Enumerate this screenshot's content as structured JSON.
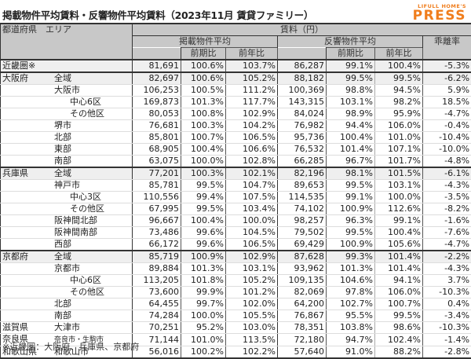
{
  "title": "掲載物件平均賃料・反響物件平均賃料（2023年11月 賃貸ファミリー）",
  "logo": {
    "line1": "LIFULL HOME'S",
    "line2": "PRESS",
    "color": "#f07d1c"
  },
  "header": {
    "area": "都道府県　エリア",
    "rent": "賃料（円）",
    "listed": "掲載物件平均",
    "response": "反響物件平均",
    "divergence": "乖離率",
    "qoq": "前期比",
    "yoy": "前年比"
  },
  "rows": [
    {
      "pref": "近畿圏※",
      "area": "",
      "l": "81,691",
      "lq": "100.6%",
      "ly": "103.7%",
      "r": "86,287",
      "rq": "99.1%",
      "ry": "100.4%",
      "d": "-5.3%"
    },
    {
      "pref": "大阪府",
      "area": "全域",
      "l": "82,697",
      "lq": "100.6%",
      "ly": "105.2%",
      "r": "88,182",
      "rq": "99.5%",
      "ry": "99.5%",
      "d": "-6.2%"
    },
    {
      "pref": "",
      "area": "大阪市",
      "l": "106,253",
      "lq": "100.5%",
      "ly": "111.2%",
      "r": "100,369",
      "rq": "98.8%",
      "ry": "94.5%",
      "d": "5.9%"
    },
    {
      "pref": "",
      "area": "中心6区",
      "l": "169,873",
      "lq": "101.3%",
      "ly": "117.7%",
      "r": "143,315",
      "rq": "103.1%",
      "ry": "98.2%",
      "d": "18.5%"
    },
    {
      "pref": "",
      "area": "その他区",
      "l": "80,053",
      "lq": "100.8%",
      "ly": "102.9%",
      "r": "84,024",
      "rq": "98.9%",
      "ry": "95.9%",
      "d": "-4.7%"
    },
    {
      "pref": "",
      "area": "堺市",
      "l": "76,681",
      "lq": "100.3%",
      "ly": "104.2%",
      "r": "76,982",
      "rq": "94.4%",
      "ry": "106.0%",
      "d": "-0.4%"
    },
    {
      "pref": "",
      "area": "北部",
      "l": "85,801",
      "lq": "100.7%",
      "ly": "106.5%",
      "r": "95,736",
      "rq": "100.4%",
      "ry": "101.0%",
      "d": "-10.4%"
    },
    {
      "pref": "",
      "area": "東部",
      "l": "68,905",
      "lq": "100.4%",
      "ly": "106.6%",
      "r": "76,532",
      "rq": "101.4%",
      "ry": "107.1%",
      "d": "-10.0%"
    },
    {
      "pref": "",
      "area": "南部",
      "l": "63,075",
      "lq": "100.0%",
      "ly": "102.8%",
      "r": "66,285",
      "rq": "96.7%",
      "ry": "101.7%",
      "d": "-4.8%"
    },
    {
      "pref": "兵庫県",
      "area": "全域",
      "l": "77,201",
      "lq": "100.3%",
      "ly": "102.1%",
      "r": "82,196",
      "rq": "98.1%",
      "ry": "101.5%",
      "d": "-6.1%"
    },
    {
      "pref": "",
      "area": "神戸市",
      "l": "85,781",
      "lq": "99.5%",
      "ly": "104.7%",
      "r": "89,653",
      "rq": "99.5%",
      "ry": "103.1%",
      "d": "-4.3%"
    },
    {
      "pref": "",
      "area": "中心3区",
      "l": "110,556",
      "lq": "99.4%",
      "ly": "107.5%",
      "r": "114,535",
      "rq": "99.1%",
      "ry": "100.0%",
      "d": "-3.5%"
    },
    {
      "pref": "",
      "area": "その他区",
      "l": "67,995",
      "lq": "99.5%",
      "ly": "103.4%",
      "r": "74,102",
      "rq": "100.9%",
      "ry": "112.6%",
      "d": "-8.2%"
    },
    {
      "pref": "",
      "area": "阪神間北部",
      "l": "96,667",
      "lq": "100.4%",
      "ly": "100.0%",
      "r": "98,257",
      "rq": "96.3%",
      "ry": "99.1%",
      "d": "-1.6%"
    },
    {
      "pref": "",
      "area": "阪神間南部",
      "l": "73,486",
      "lq": "99.6%",
      "ly": "104.5%",
      "r": "79,502",
      "rq": "99.5%",
      "ry": "100.4%",
      "d": "-7.6%"
    },
    {
      "pref": "",
      "area": "西部",
      "l": "66,172",
      "lq": "99.6%",
      "ly": "106.5%",
      "r": "69,429",
      "rq": "100.9%",
      "ry": "105.6%",
      "d": "-4.7%"
    },
    {
      "pref": "京都府",
      "area": "全域",
      "l": "85,719",
      "lq": "100.9%",
      "ly": "102.9%",
      "r": "87,628",
      "rq": "99.3%",
      "ry": "101.4%",
      "d": "-2.2%"
    },
    {
      "pref": "",
      "area": "京都市",
      "l": "89,884",
      "lq": "101.3%",
      "ly": "103.1%",
      "r": "93,962",
      "rq": "101.3%",
      "ry": "101.4%",
      "d": "-4.3%"
    },
    {
      "pref": "",
      "area": "中心6区",
      "l": "113,205",
      "lq": "101.8%",
      "ly": "105.2%",
      "r": "109,135",
      "rq": "104.6%",
      "ry": "94.1%",
      "d": "3.7%"
    },
    {
      "pref": "",
      "area": "その他区",
      "l": "73,600",
      "lq": "99.9%",
      "ly": "101.2%",
      "r": "82,069",
      "rq": "97.8%",
      "ry": "106.0%",
      "d": "-10.3%"
    },
    {
      "pref": "",
      "area": "北部",
      "l": "64,455",
      "lq": "99.7%",
      "ly": "102.0%",
      "r": "64,200",
      "rq": "102.7%",
      "ry": "100.7%",
      "d": "0.4%"
    },
    {
      "pref": "",
      "area": "南部",
      "l": "74,284",
      "lq": "100.0%",
      "ly": "105.5%",
      "r": "76,867",
      "rq": "95.5%",
      "ry": "99.5%",
      "d": "-3.4%"
    },
    {
      "pref": "滋賀県",
      "area": "大津市",
      "l": "70,251",
      "lq": "95.2%",
      "ly": "103.0%",
      "r": "78,351",
      "rq": "103.8%",
      "ry": "98.6%",
      "d": "-10.3%"
    },
    {
      "pref": "奈良県",
      "area": "奈良市・生駒市",
      "l": "71,144",
      "lq": "101.0%",
      "ly": "113.5%",
      "r": "72,180",
      "rq": "94.7%",
      "ry": "102.4%",
      "d": "-1.4%"
    },
    {
      "pref": "和歌山県",
      "area": "和歌山市",
      "l": "56,016",
      "lq": "100.2%",
      "ly": "102.2%",
      "r": "57,640",
      "rq": "91.0%",
      "ry": "88.2%",
      "d": "-2.8%"
    }
  ],
  "footnote": "※近畿圏：大阪府、兵庫県、京都府"
}
